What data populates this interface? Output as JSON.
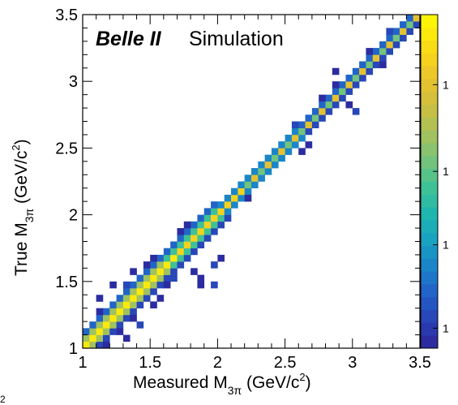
{
  "chart_data": {
    "type": "heatmap",
    "title_bold": "Belle II",
    "title_rest": "Simulation",
    "xlabel": {
      "main": "Measured M",
      "sub": "3π",
      "unit_open": " (GeV/c",
      "unit_sup": "2",
      "unit_close": ")"
    },
    "ylabel": {
      "main": "True M",
      "sub": "3π",
      "unit_open": " (GeV/c",
      "unit_sup": "2",
      "unit_close": ")"
    },
    "xlim": [
      1.0,
      3.5
    ],
    "ylim": [
      1.0,
      3.5
    ],
    "x_ticks": [
      "1",
      "1.5",
      "2",
      "2.5",
      "3",
      "3.5"
    ],
    "y_ticks": [
      "1",
      "1.5",
      "2",
      "2.5",
      "3",
      "3.5"
    ],
    "bins": 50,
    "colorbar_labels": [
      "1",
      "1",
      "1",
      "1"
    ],
    "stray_label": "2",
    "outlier_cells": [
      [
        3.3,
        3.4
      ],
      [
        3.28,
        3.34
      ],
      [
        2.82,
        2.9
      ],
      [
        2.85,
        2.98
      ],
      [
        2.98,
        2.84
      ],
      [
        3.02,
        2.78
      ],
      [
        2.78,
        2.86
      ],
      [
        2.9,
        3.06
      ],
      [
        2.6,
        2.46
      ],
      [
        2.4,
        2.36
      ],
      [
        2.3,
        2.24
      ],
      [
        2.2,
        2.28
      ],
      [
        2.24,
        2.1
      ],
      [
        2.06,
        1.96
      ],
      [
        2.02,
        1.7
      ],
      [
        1.96,
        1.64
      ],
      [
        1.78,
        1.92
      ],
      [
        1.72,
        1.86
      ],
      [
        1.9,
        1.52
      ],
      [
        1.86,
        1.48
      ],
      [
        1.98,
        1.46
      ],
      [
        1.8,
        1.56
      ],
      [
        1.58,
        1.4
      ],
      [
        1.52,
        1.34
      ],
      [
        1.36,
        1.56
      ],
      [
        1.3,
        1.48
      ],
      [
        1.22,
        1.46
      ],
      [
        1.14,
        1.38
      ],
      [
        1.1,
        1.26
      ],
      [
        1.4,
        1.22
      ],
      [
        1.44,
        1.2
      ],
      [
        1.28,
        1.14
      ],
      [
        1.3,
        1.08
      ],
      [
        1.2,
        1.04
      ],
      [
        1.62,
        1.48
      ],
      [
        1.68,
        1.54
      ],
      [
        1.46,
        1.62
      ],
      [
        1.54,
        1.68
      ],
      [
        1.1,
        1.2
      ],
      [
        1.18,
        1.1
      ],
      [
        2.58,
        2.66
      ],
      [
        2.66,
        2.52
      ],
      [
        2.14,
        2.06
      ],
      [
        3.2,
        3.12
      ],
      [
        3.14,
        3.24
      ]
    ]
  }
}
